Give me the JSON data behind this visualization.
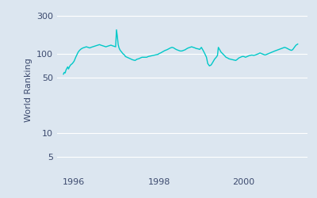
{
  "ylabel": "World Ranking",
  "line_color": "#00c8c8",
  "bg_color": "#dce6f0",
  "fig_bg_color": "#dce6f0",
  "grid_color": "#ffffff",
  "tick_label_color": "#3c4a6e",
  "axis_label_color": "#3c4a6e",
  "xlim": [
    1995.6,
    2001.5
  ],
  "ylim": [
    3,
    400
  ],
  "yticks": [
    5,
    10,
    50,
    100,
    300
  ],
  "xticks": [
    1996,
    1998,
    2000
  ],
  "xticklabels": [
    "1996",
    "1998",
    "2000"
  ],
  "yticklabels": [
    "5",
    "10",
    "50",
    "100",
    "300"
  ],
  "line_width": 1.0,
  "data_x": [
    1995.75,
    1995.77,
    1995.79,
    1995.81,
    1995.83,
    1995.85,
    1995.87,
    1995.89,
    1995.92,
    1995.96,
    1996.0,
    1996.02,
    1996.04,
    1996.06,
    1996.08,
    1996.1,
    1996.13,
    1996.17,
    1996.21,
    1996.25,
    1996.29,
    1996.33,
    1996.37,
    1996.4,
    1996.44,
    1996.48,
    1996.52,
    1996.56,
    1996.6,
    1996.63,
    1996.67,
    1996.71,
    1996.75,
    1996.79,
    1996.83,
    1996.87,
    1996.9,
    1996.94,
    1996.98,
    1997.0,
    1997.02,
    1997.04,
    1997.06,
    1997.08,
    1997.1,
    1997.12,
    1997.15,
    1997.17,
    1997.19,
    1997.21,
    1997.25,
    1997.29,
    1997.33,
    1997.37,
    1997.4,
    1997.44,
    1997.48,
    1997.52,
    1997.56,
    1997.6,
    1997.63,
    1997.67,
    1997.71,
    1997.75,
    1997.79,
    1997.83,
    1997.87,
    1997.9,
    1997.94,
    1997.98,
    1998.0,
    1998.04,
    1998.08,
    1998.12,
    1998.15,
    1998.19,
    1998.23,
    1998.27,
    1998.31,
    1998.35,
    1998.38,
    1998.42,
    1998.46,
    1998.5,
    1998.54,
    1998.58,
    1998.62,
    1998.65,
    1998.69,
    1998.73,
    1998.77,
    1998.81,
    1998.85,
    1998.88,
    1998.92,
    1998.96,
    1999.0,
    1999.02,
    1999.04,
    1999.06,
    1999.08,
    1999.1,
    1999.12,
    1999.15,
    1999.19,
    1999.23,
    1999.27,
    1999.31,
    1999.35,
    1999.38,
    1999.4,
    1999.42,
    1999.44,
    1999.46,
    1999.5,
    1999.54,
    1999.58,
    1999.62,
    1999.65,
    1999.69,
    1999.73,
    1999.77,
    1999.81,
    1999.85,
    1999.88,
    1999.92,
    1999.96,
    2000.0,
    2000.04,
    2000.08,
    2000.12,
    2000.15,
    2000.19,
    2000.23,
    2000.27,
    2000.31,
    2000.35,
    2000.38,
    2000.42,
    2000.46,
    2000.5,
    2000.54,
    2000.58,
    2000.62,
    2000.65,
    2000.69,
    2000.73,
    2000.77,
    2000.81,
    2000.85,
    2000.88,
    2000.92,
    2000.96,
    2001.0,
    2001.04,
    2001.08,
    2001.12,
    2001.15,
    2001.19,
    2001.23,
    2001.27
  ],
  "data_y": [
    55,
    58,
    57,
    62,
    65,
    68,
    64,
    68,
    72,
    75,
    80,
    85,
    90,
    95,
    100,
    105,
    110,
    115,
    118,
    120,
    122,
    120,
    118,
    120,
    122,
    124,
    126,
    128,
    130,
    128,
    126,
    124,
    122,
    124,
    126,
    128,
    126,
    124,
    122,
    200,
    165,
    130,
    118,
    112,
    108,
    105,
    100,
    98,
    96,
    92,
    90,
    88,
    86,
    84,
    83,
    82,
    85,
    86,
    88,
    90,
    90,
    90,
    90,
    92,
    93,
    94,
    95,
    96,
    97,
    98,
    100,
    102,
    105,
    108,
    110,
    112,
    115,
    118,
    120,
    118,
    115,
    112,
    110,
    108,
    108,
    110,
    112,
    115,
    118,
    120,
    122,
    120,
    118,
    116,
    115,
    113,
    120,
    115,
    110,
    105,
    100,
    95,
    90,
    75,
    70,
    72,
    78,
    85,
    90,
    95,
    120,
    115,
    110,
    105,
    100,
    95,
    90,
    88,
    86,
    85,
    84,
    83,
    82,
    85,
    88,
    90,
    92,
    92,
    90,
    92,
    94,
    95,
    96,
    95,
    96,
    98,
    100,
    102,
    100,
    98,
    96,
    98,
    100,
    102,
    104,
    106,
    108,
    110,
    112,
    114,
    116,
    118,
    120,
    118,
    115,
    112,
    110,
    112,
    120,
    128,
    132
  ]
}
